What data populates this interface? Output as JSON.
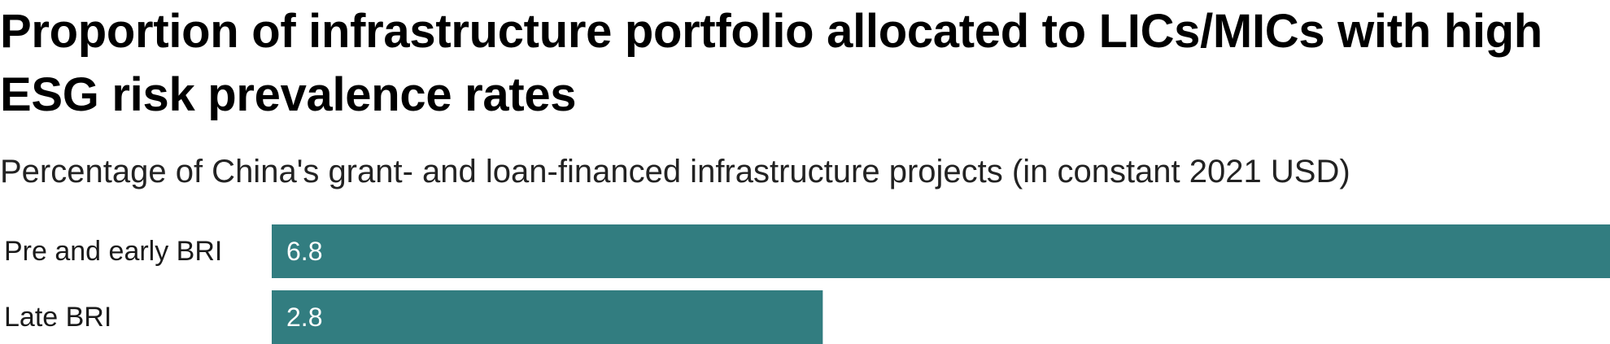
{
  "colors": {
    "bar": "#327d80",
    "value_text": "#ffffff",
    "label_text": "#1a1a1a",
    "title_text": "#000000",
    "subtitle_text": "#222222"
  },
  "chart_data": {
    "type": "bar",
    "orientation": "horizontal",
    "title": "Proportion of infrastructure portfolio allocated to LICs/MICs with high ESG risk prevalence rates",
    "subtitle": "Percentage of China's grant- and loan-financed infrastructure projects (in constant 2021 USD)",
    "xlabel": "",
    "ylabel": "",
    "categories": [
      "Pre and early BRI",
      "Late BRI"
    ],
    "values": [
      6.8,
      2.8
    ],
    "value_labels": [
      "6.8",
      "2.8"
    ],
    "xlim": [
      0,
      6.8
    ],
    "grid": false,
    "legend": "none"
  }
}
